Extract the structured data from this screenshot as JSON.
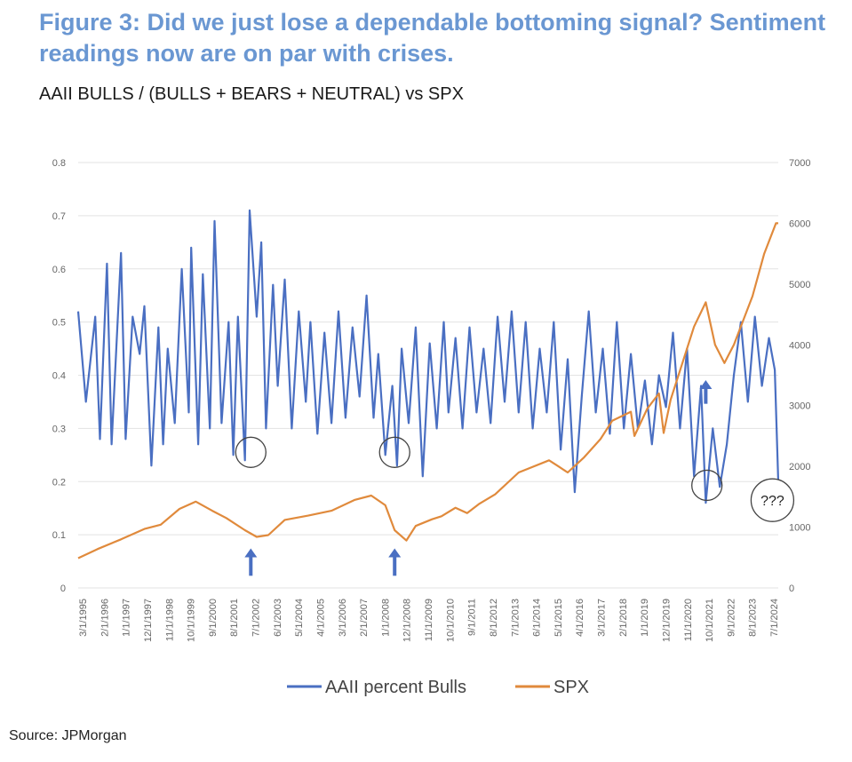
{
  "figure": {
    "title": "Figure 3: Did we just lose a dependable bottoming signal? Sentiment readings now are on par with crises.",
    "subtitle": "AAII BULLS / (BULLS + BEARS + NEUTRAL) vs SPX",
    "source": "Source: JPMorgan"
  },
  "colors": {
    "bulls": "#4a6fc2",
    "spx": "#e08a3c",
    "title": "#6a97d2",
    "arrow": "#4a6fc2"
  },
  "chart_data": {
    "type": "line",
    "title": "AAII BULLS / (BULLS + BEARS + NEUTRAL) vs SPX",
    "x_tick_labels": [
      "3/1/1995",
      "2/1/1996",
      "1/1/1997",
      "12/1/1997",
      "11/1/1998",
      "10/1/1999",
      "9/1/2000",
      "8/1/2001",
      "7/1/2002",
      "6/1/2003",
      "5/1/2004",
      "4/1/2005",
      "3/1/2006",
      "2/1/2007",
      "1/1/2008",
      "12/1/2008",
      "11/1/2009",
      "10/1/2010",
      "9/1/2011",
      "8/1/2012",
      "7/1/2013",
      "6/1/2014",
      "5/1/2015",
      "4/1/2016",
      "3/1/2017",
      "2/1/2018",
      "1/1/2019",
      "12/1/2019",
      "11/1/2020",
      "10/1/2021",
      "9/1/2022",
      "8/1/2023",
      "7/1/2024"
    ],
    "y_left": {
      "min": 0,
      "max": 0.8,
      "ticks": [
        "0",
        "0.1",
        "0.2",
        "0.3",
        "0.4",
        "0.5",
        "0.6",
        "0.7",
        "0.8"
      ]
    },
    "y_right": {
      "min": 0,
      "max": 7000,
      "ticks": [
        "0",
        "1000",
        "2000",
        "3000",
        "4000",
        "5000",
        "6000",
        "7000"
      ]
    },
    "grid": true,
    "legend_position": "bottom",
    "series": [
      {
        "name": "AAII percent Bulls",
        "axis": "left",
        "x": [
          1995.17,
          1995.5,
          1995.9,
          1996.1,
          1996.4,
          1996.6,
          1996.8,
          1997.0,
          1997.2,
          1997.5,
          1997.8,
          1998.0,
          1998.3,
          1998.6,
          1998.8,
          1999.0,
          1999.3,
          1999.6,
          1999.9,
          2000.0,
          2000.3,
          2000.5,
          2000.8,
          2001.0,
          2001.3,
          2001.6,
          2001.8,
          2002.0,
          2002.3,
          2002.5,
          2002.8,
          2003.0,
          2003.2,
          2003.5,
          2003.7,
          2004.0,
          2004.3,
          2004.6,
          2004.9,
          2005.1,
          2005.4,
          2005.7,
          2006.0,
          2006.3,
          2006.6,
          2006.9,
          2007.2,
          2007.5,
          2007.8,
          2008.0,
          2008.3,
          2008.6,
          2008.8,
          2009.0,
          2009.3,
          2009.6,
          2009.9,
          2010.2,
          2010.5,
          2010.8,
          2011.0,
          2011.3,
          2011.6,
          2011.9,
          2012.2,
          2012.5,
          2012.8,
          2013.1,
          2013.4,
          2013.7,
          2014.0,
          2014.3,
          2014.6,
          2014.9,
          2015.2,
          2015.5,
          2015.8,
          2016.1,
          2016.4,
          2016.7,
          2017.0,
          2017.3,
          2017.6,
          2017.9,
          2018.2,
          2018.5,
          2018.8,
          2019.1,
          2019.4,
          2019.7,
          2020.0,
          2020.3,
          2020.6,
          2020.9,
          2021.2,
          2021.5,
          2021.8,
          2022.0,
          2022.3,
          2022.6,
          2022.9,
          2023.2,
          2023.5,
          2023.8,
          2024.1,
          2024.4,
          2024.7,
          2024.95,
          2025.1
        ],
        "values": [
          0.52,
          0.35,
          0.51,
          0.28,
          0.61,
          0.27,
          0.45,
          0.63,
          0.28,
          0.51,
          0.44,
          0.53,
          0.23,
          0.49,
          0.27,
          0.45,
          0.31,
          0.6,
          0.33,
          0.64,
          0.27,
          0.59,
          0.3,
          0.69,
          0.31,
          0.5,
          0.25,
          0.51,
          0.24,
          0.71,
          0.51,
          0.65,
          0.3,
          0.57,
          0.38,
          0.58,
          0.3,
          0.52,
          0.35,
          0.5,
          0.29,
          0.48,
          0.31,
          0.52,
          0.32,
          0.49,
          0.36,
          0.55,
          0.32,
          0.44,
          0.25,
          0.38,
          0.23,
          0.45,
          0.31,
          0.49,
          0.21,
          0.46,
          0.3,
          0.5,
          0.33,
          0.47,
          0.3,
          0.49,
          0.33,
          0.45,
          0.31,
          0.51,
          0.35,
          0.52,
          0.33,
          0.5,
          0.3,
          0.45,
          0.33,
          0.5,
          0.26,
          0.43,
          0.18,
          0.36,
          0.52,
          0.33,
          0.45,
          0.29,
          0.5,
          0.3,
          0.44,
          0.3,
          0.39,
          0.27,
          0.4,
          0.34,
          0.48,
          0.3,
          0.45,
          0.21,
          0.38,
          0.16,
          0.3,
          0.19,
          0.27,
          0.4,
          0.5,
          0.35,
          0.51,
          0.38,
          0.47,
          0.41,
          0.2
        ]
      },
      {
        "name": "SPX",
        "axis": "right",
        "x": [
          1995.17,
          1996.0,
          1997.0,
          1998.0,
          1998.7,
          1999.5,
          2000.2,
          2000.9,
          2001.5,
          2002.3,
          2002.8,
          2003.3,
          2004.0,
          2005.0,
          2006.0,
          2007.0,
          2007.7,
          2008.3,
          2008.7,
          2009.2,
          2009.6,
          2010.3,
          2010.7,
          2011.3,
          2011.8,
          2012.3,
          2013.0,
          2014.0,
          2015.3,
          2015.7,
          2016.1,
          2016.8,
          2017.5,
          2018.0,
          2018.8,
          2018.95,
          2019.5,
          2020.0,
          2020.2,
          2020.5,
          2021.0,
          2021.5,
          2022.0,
          2022.4,
          2022.8,
          2023.2,
          2023.6,
          2024.0,
          2024.5,
          2025.0,
          2025.1
        ],
        "values": [
          490,
          640,
          800,
          970,
          1040,
          1300,
          1420,
          1270,
          1150,
          950,
          840,
          870,
          1120,
          1190,
          1270,
          1450,
          1520,
          1360,
          950,
          780,
          1020,
          1130,
          1180,
          1320,
          1230,
          1380,
          1540,
          1900,
          2100,
          2000,
          1900,
          2150,
          2450,
          2750,
          2900,
          2500,
          2950,
          3200,
          2550,
          3100,
          3700,
          4300,
          4700,
          4000,
          3700,
          4000,
          4400,
          4800,
          5500,
          6000,
          6000
        ]
      }
    ],
    "annotations": [
      "???"
    ]
  },
  "legend": {
    "bulls_label": "AAII percent Bulls",
    "spx_label": "SPX"
  }
}
